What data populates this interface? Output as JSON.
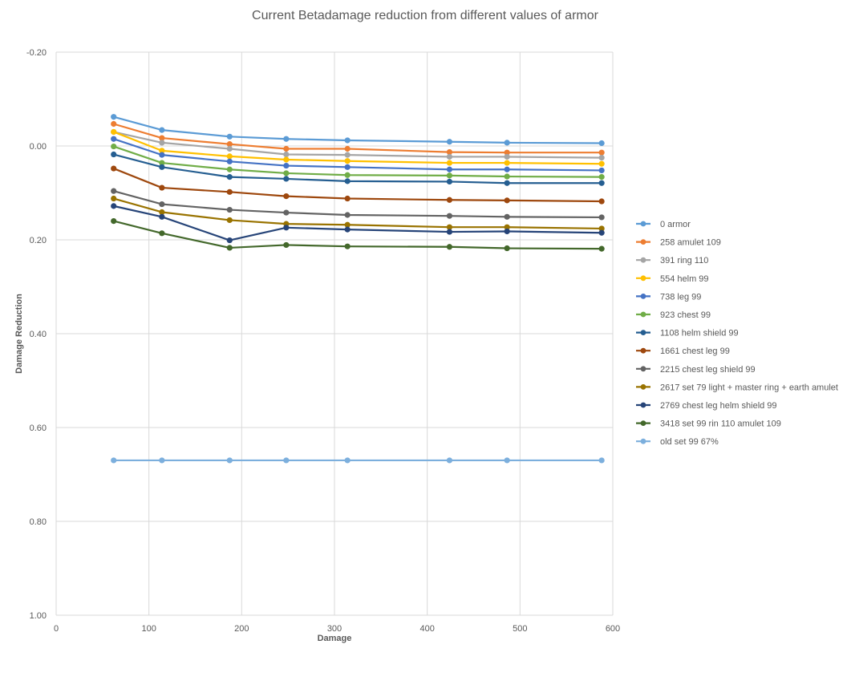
{
  "chart_data": {
    "type": "line",
    "title": "Current Betadamage reduction from different values of armor",
    "xlabel": "Damage",
    "ylabel": "Damage Reduction",
    "xlim": [
      0,
      600
    ],
    "ylim": [
      -0.2,
      1.0
    ],
    "y_inverted": true,
    "grid": true,
    "legend": "right",
    "x_ticks": [
      "0",
      "100",
      "200",
      "300",
      "400",
      "500",
      "600"
    ],
    "x_tick_values": [
      0,
      100,
      200,
      300,
      400,
      500,
      600
    ],
    "y_ticks": [
      "-0.20",
      "0.00",
      "0.20",
      "0.40",
      "0.60",
      "0.80",
      "1.00"
    ],
    "y_tick_values": [
      -0.2,
      0,
      0.2,
      0.4,
      0.6,
      0.8,
      1.0
    ],
    "x": [
      62,
      114,
      187,
      248,
      314,
      424,
      486,
      588
    ],
    "series": [
      {
        "name": "0 armor",
        "color": "#5B9BD5",
        "values": [
          -0.062,
          -0.034,
          -0.02,
          -0.015,
          -0.012,
          -0.009,
          -0.007,
          -0.006
        ]
      },
      {
        "name": "258 amulet 109",
        "color": "#ED7D31",
        "values": [
          -0.047,
          -0.017,
          -0.004,
          0.006,
          0.006,
          0.013,
          0.014,
          0.014
        ]
      },
      {
        "name": "391 ring 110",
        "color": "#A5A5A5",
        "values": [
          -0.03,
          -0.007,
          0.006,
          0.018,
          0.019,
          0.023,
          0.023,
          0.025
        ]
      },
      {
        "name": "554 helm 99",
        "color": "#FFC000",
        "values": [
          -0.03,
          0.01,
          0.022,
          0.029,
          0.032,
          0.036,
          0.036,
          0.038
        ]
      },
      {
        "name": "738 leg 99",
        "color": "#4472C4",
        "values": [
          -0.015,
          0.019,
          0.033,
          0.042,
          0.045,
          0.05,
          0.05,
          0.052
        ]
      },
      {
        "name": "923 chest 99",
        "color": "#70AD47",
        "values": [
          0.001,
          0.036,
          0.05,
          0.058,
          0.062,
          0.063,
          0.065,
          0.066
        ]
      },
      {
        "name": "1108 helm shield 99",
        "color": "#255E91",
        "values": [
          0.018,
          0.045,
          0.066,
          0.07,
          0.075,
          0.076,
          0.079,
          0.079
        ]
      },
      {
        "name": "1661 chest leg 99",
        "color": "#9E480E",
        "values": [
          0.048,
          0.089,
          0.098,
          0.107,
          0.112,
          0.115,
          0.116,
          0.118
        ]
      },
      {
        "name": "2215 chest leg shield 99",
        "color": "#636363",
        "values": [
          0.096,
          0.124,
          0.136,
          0.142,
          0.147,
          0.149,
          0.151,
          0.152
        ]
      },
      {
        "name": "2617 set 79 light + master ring + earth amulet",
        "color": "#997300",
        "values": [
          0.112,
          0.141,
          0.158,
          0.166,
          0.168,
          0.173,
          0.173,
          0.176
        ]
      },
      {
        "name": "2769 chest leg helm shield 99",
        "color": "#264478",
        "values": [
          0.128,
          0.151,
          0.201,
          0.174,
          0.178,
          0.183,
          0.182,
          0.185
        ]
      },
      {
        "name": "3418 set 99 rin 110 amulet 109",
        "color": "#43682B",
        "values": [
          0.16,
          0.186,
          0.217,
          0.211,
          0.214,
          0.215,
          0.218,
          0.219
        ]
      },
      {
        "name": "old set 99 67%",
        "color": "#7CAFDD",
        "values": [
          0.67,
          0.67,
          0.67,
          0.67,
          0.67,
          0.67,
          0.67,
          0.67
        ]
      }
    ]
  }
}
